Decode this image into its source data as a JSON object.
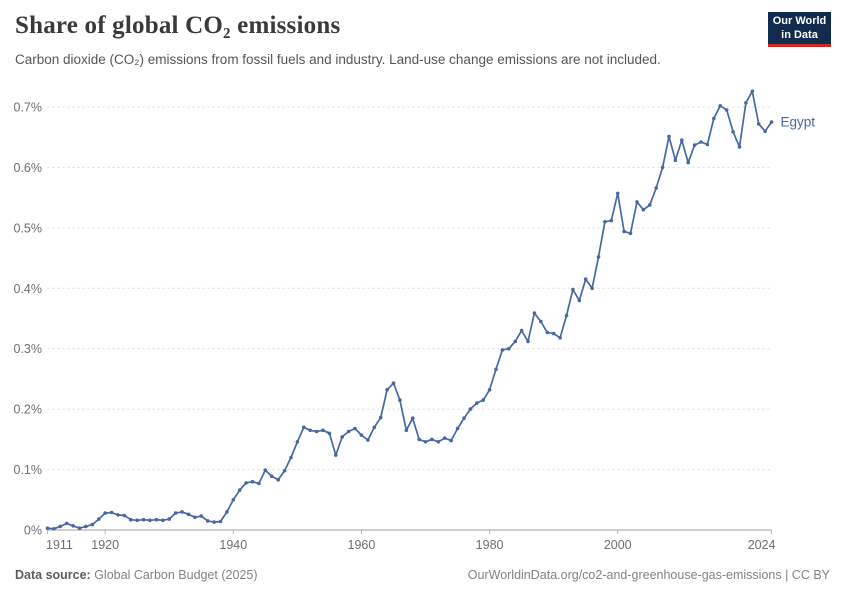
{
  "header": {
    "title": "Share of global CO₂ emissions",
    "subtitle": "Carbon dioxide (CO₂) emissions from fossil fuels and industry. Land-use change emissions are not included.",
    "logo": {
      "line1": "Our World",
      "line2": "in Data"
    }
  },
  "footer": {
    "source_label": "Data source:",
    "source_value": " Global Carbon Budget (2025)",
    "attribution": "OurWorldinData.org/co2-and-greenhouse-gas-emissions | CC BY"
  },
  "colors": {
    "line": "#4668a3",
    "logo_navy": "#122c4e",
    "logo_red": "#cf2820"
  },
  "chart_data": {
    "type": "line",
    "title": "Share of global CO₂ emissions",
    "series_label": "Egypt",
    "xlabel": "",
    "ylabel": "",
    "xlim": [
      1911,
      2024
    ],
    "ylim": [
      0,
      0.73
    ],
    "x_ticks": [
      1911,
      1920,
      1940,
      1960,
      1980,
      2000,
      2024
    ],
    "y_ticks": [
      0,
      0.1,
      0.2,
      0.3,
      0.4,
      0.5,
      0.6,
      0.7
    ],
    "y_tick_suffix": "%",
    "grid": "horizontal-dashed",
    "legend_position": "end-of-line-label",
    "x": [
      1911,
      1912,
      1913,
      1914,
      1915,
      1916,
      1917,
      1918,
      1919,
      1920,
      1921,
      1922,
      1923,
      1924,
      1925,
      1926,
      1927,
      1928,
      1929,
      1930,
      1931,
      1932,
      1933,
      1934,
      1935,
      1936,
      1937,
      1938,
      1939,
      1940,
      1941,
      1942,
      1943,
      1944,
      1945,
      1946,
      1947,
      1948,
      1949,
      1950,
      1951,
      1952,
      1953,
      1954,
      1955,
      1956,
      1957,
      1958,
      1959,
      1960,
      1961,
      1962,
      1963,
      1964,
      1965,
      1966,
      1967,
      1968,
      1969,
      1970,
      1971,
      1972,
      1973,
      1974,
      1975,
      1976,
      1977,
      1978,
      1979,
      1980,
      1981,
      1982,
      1983,
      1984,
      1985,
      1986,
      1987,
      1988,
      1989,
      1990,
      1991,
      1992,
      1993,
      1994,
      1995,
      1996,
      1997,
      1998,
      1999,
      2000,
      2001,
      2002,
      2003,
      2004,
      2005,
      2006,
      2007,
      2008,
      2009,
      2010,
      2011,
      2012,
      2013,
      2014,
      2015,
      2016,
      2017,
      2018,
      2019,
      2020,
      2021,
      2022,
      2023,
      2024
    ],
    "values": [
      0.003,
      0.002,
      0.006,
      0.011,
      0.007,
      0.003,
      0.006,
      0.009,
      0.018,
      0.028,
      0.029,
      0.025,
      0.024,
      0.017,
      0.016,
      0.017,
      0.016,
      0.017,
      0.016,
      0.018,
      0.028,
      0.03,
      0.026,
      0.021,
      0.023,
      0.015,
      0.013,
      0.014,
      0.03,
      0.05,
      0.066,
      0.078,
      0.08,
      0.077,
      0.099,
      0.089,
      0.083,
      0.098,
      0.12,
      0.146,
      0.17,
      0.165,
      0.163,
      0.165,
      0.16,
      0.124,
      0.154,
      0.163,
      0.168,
      0.157,
      0.149,
      0.17,
      0.186,
      0.232,
      0.243,
      0.215,
      0.165,
      0.185,
      0.15,
      0.146,
      0.15,
      0.146,
      0.152,
      0.148,
      0.168,
      0.185,
      0.2,
      0.21,
      0.215,
      0.232,
      0.266,
      0.298,
      0.3,
      0.312,
      0.33,
      0.312,
      0.359,
      0.345,
      0.327,
      0.325,
      0.318,
      0.355,
      0.398,
      0.38,
      0.415,
      0.4,
      0.452,
      0.51,
      0.512,
      0.557,
      0.494,
      0.491,
      0.543,
      0.53,
      0.538,
      0.566,
      0.6,
      0.651,
      0.612,
      0.645,
      0.608,
      0.637,
      0.642,
      0.638,
      0.681,
      0.702,
      0.695,
      0.659,
      0.634,
      0.707,
      0.726,
      0.672,
      0.66,
      0.675
    ]
  }
}
